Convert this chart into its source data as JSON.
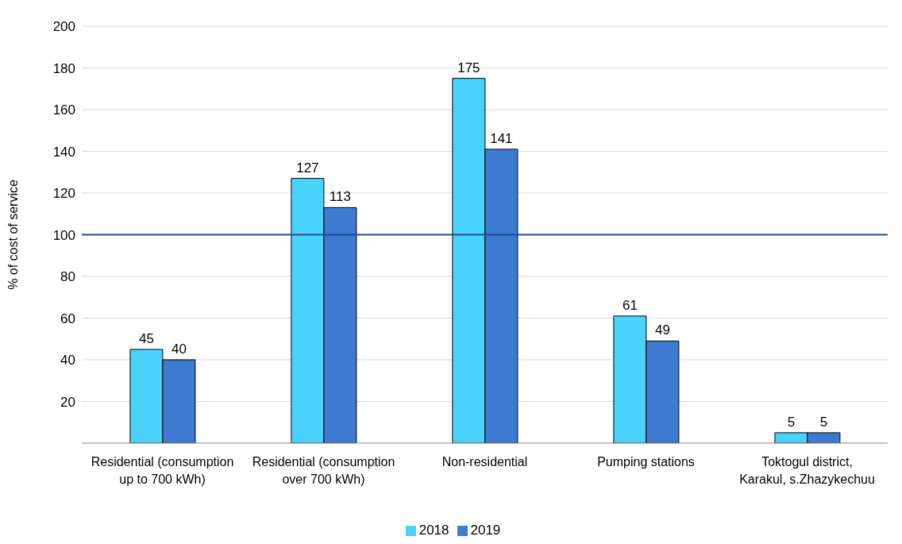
{
  "chart_data": {
    "type": "bar",
    "ylabel": "% of cost of service",
    "categories": [
      "Residential (consumption up to 700 kWh)",
      "Residential (consumption over 700 kWh)",
      "Non-residential",
      "Pumping stations",
      "Toktogul district, Karakul, s.Zhazykechuu"
    ],
    "series": [
      {
        "name": "2018",
        "color": "#49d3fc",
        "values": [
          45,
          127,
          175,
          61,
          5
        ]
      },
      {
        "name": "2019",
        "color": "#3f7ad2",
        "values": [
          40,
          113,
          141,
          49,
          5
        ]
      }
    ],
    "ylim": [
      0,
      200
    ],
    "yticks": [
      {
        "value": 0,
        "label": null
      },
      20,
      40,
      60,
      80,
      100,
      120,
      140,
      160,
      180,
      200
    ],
    "grid": "y",
    "legend": "bottom",
    "data_labels": true,
    "ref_lines": [
      {
        "axis": "y",
        "value": 100,
        "color": "#1f4e8c"
      }
    ]
  }
}
